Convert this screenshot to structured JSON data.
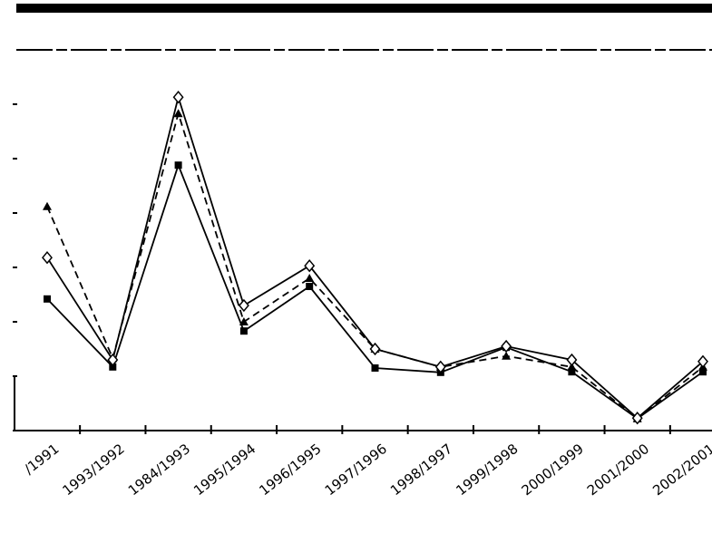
{
  "chart_data": {
    "type": "line",
    "categories": [
      "/1991",
      "1993/1992",
      "1984/1993",
      "1995/1994",
      "1996/1995",
      "1997/1996",
      "1998/1997",
      "1999/1998",
      "2000/1999",
      "2001/2000",
      "2002/2001"
    ],
    "series": [
      {
        "color": "#000000",
        "marker": "square",
        "dashed": false,
        "values": [
          2.42,
          1.17,
          4.88,
          1.83,
          2.65,
          1.15,
          1.07,
          1.53,
          1.08,
          0.22,
          1.08
        ]
      },
      {
        "color": "#000000",
        "marker": "triangle",
        "dashed": true,
        "values": [
          4.12,
          1.33,
          5.83,
          2.0,
          2.8,
          1.5,
          1.17,
          1.37,
          1.17,
          0.22,
          1.17
        ]
      },
      {
        "color": "#000000",
        "marker": "diamond",
        "dashed": false,
        "values": [
          3.18,
          1.3,
          6.13,
          2.3,
          3.03,
          1.5,
          1.17,
          1.55,
          1.3,
          0.23,
          1.27
        ]
      }
    ],
    "ylim": [
      0,
      6.25
    ],
    "yticks": [
      0,
      1,
      2,
      3,
      4,
      5,
      6
    ],
    "grid": false
  }
}
